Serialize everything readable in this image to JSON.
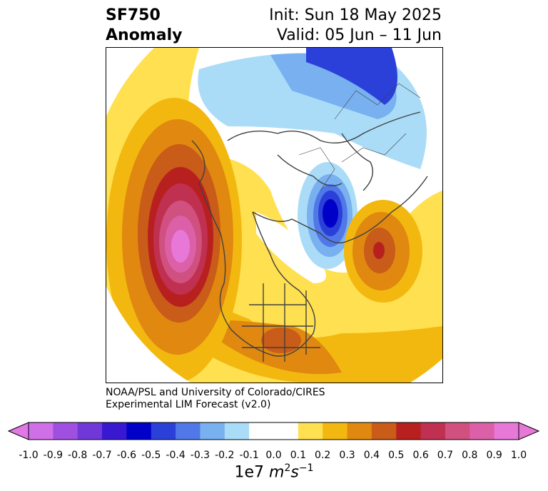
{
  "title": {
    "line1": "SF750",
    "line2": "Anomaly",
    "init": "Init: Sun 18 May 2025",
    "valid": "Valid: 05 Jun – 11 Jun"
  },
  "credit": {
    "line1": "NOAA/PSL and University of Colorado/CIRES",
    "line2": "Experimental LIM Forecast (v2.0)"
  },
  "colorbar": {
    "units_prefix": "1e7 ",
    "units_m": "m",
    "units_m_exp": "2",
    "units_s": "s",
    "units_s_exp": "−1",
    "ticks": [
      "-1.0",
      "-0.9",
      "-0.8",
      "-0.7",
      "-0.6",
      "-0.5",
      "-0.4",
      "-0.3",
      "-0.2",
      "-0.1",
      "0.0",
      "0.1",
      "0.2",
      "0.3",
      "0.4",
      "0.5",
      "0.6",
      "0.7",
      "0.8",
      "0.9",
      "1.0"
    ],
    "colors": [
      "#d070e8",
      "#a050e0",
      "#7038d8",
      "#3818d0",
      "#0000c8",
      "#2a40d8",
      "#5078e8",
      "#78b0f0",
      "#aadcf8",
      "#ffffff",
      "#ffffff",
      "#ffe050",
      "#f2b810",
      "#e08810",
      "#c85c18",
      "#b82020",
      "#c03050",
      "#d05080",
      "#dc60a8",
      "#e878d8"
    ],
    "under_color": "#e078e8",
    "over_color": "#e878d8"
  }
}
